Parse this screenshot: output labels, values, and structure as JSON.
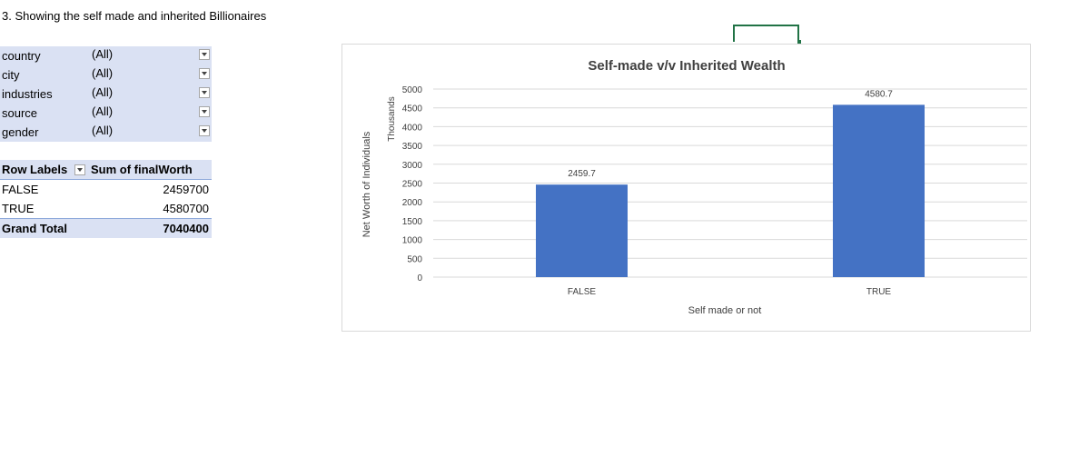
{
  "heading": "3. Showing the self made and inherited Billionaires",
  "filters": [
    {
      "field": "country",
      "value": "(All)"
    },
    {
      "field": "city",
      "value": "(All)"
    },
    {
      "field": "industries",
      "value": "(All)"
    },
    {
      "field": "source",
      "value": "(All)"
    },
    {
      "field": "gender",
      "value": "(All)"
    }
  ],
  "pivot": {
    "row_labels": "Row Labels",
    "sum_header": "Sum of finalWorth",
    "rows": [
      {
        "label": "FALSE",
        "value": "2459700"
      },
      {
        "label": "TRUE",
        "value": "4580700"
      }
    ],
    "total": {
      "label": "Grand Total",
      "value": "7040400"
    }
  },
  "colors": {
    "bar": "#4472c4",
    "gridline": "#d9d9d9",
    "pivot_fill": "#dae1f3",
    "selection": "#217346"
  },
  "chart_data": {
    "type": "bar",
    "title": "Self-made v/v Inherited Wealth",
    "xlabel": "Self made or not",
    "ylabel": "Net Worth of Individuals",
    "yunit": "Thousands",
    "categories": [
      "FALSE",
      "TRUE"
    ],
    "values": [
      2459.7,
      4580.7
    ],
    "data_labels": [
      "2459.7",
      "4580.7"
    ],
    "ylim": [
      0,
      5000
    ],
    "yticks": [
      "0",
      "500",
      "1000",
      "1500",
      "2000",
      "2500",
      "3000",
      "3500",
      "4000",
      "4500",
      "5000"
    ],
    "grid": true,
    "legend": "none"
  }
}
